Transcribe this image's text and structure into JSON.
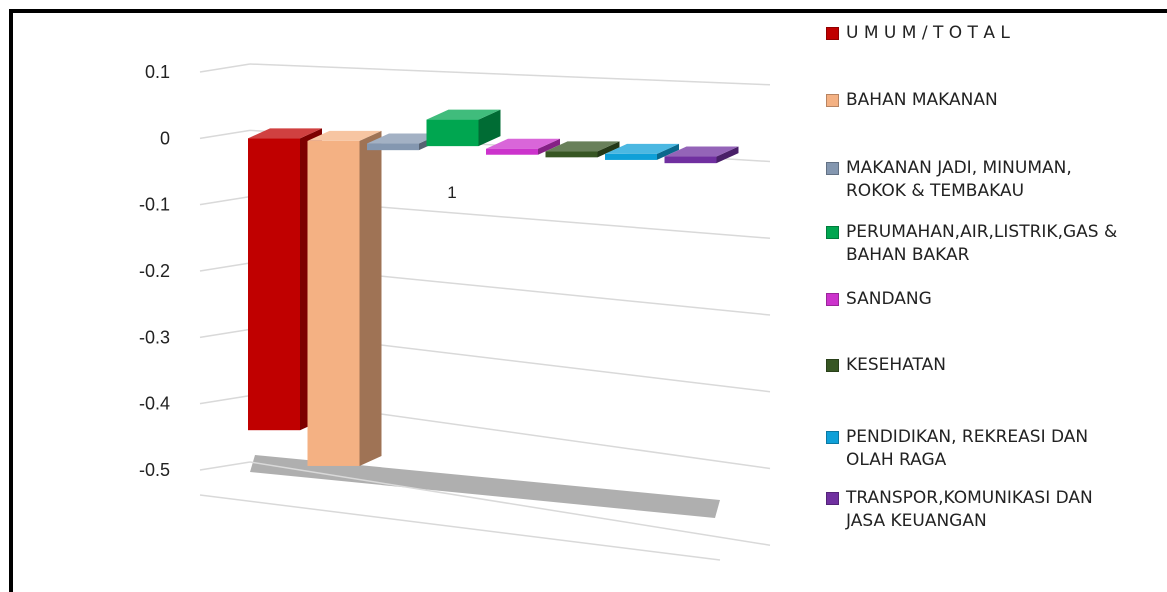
{
  "chart_data": {
    "type": "bar",
    "style": "3d-clustered-column",
    "categories": [
      "1"
    ],
    "ylim": [
      -0.5,
      0.1
    ],
    "yticks": [
      "0.1",
      "0",
      "-0.1",
      "-0.2",
      "-0.3",
      "-0.4",
      "-0.5"
    ],
    "grid": true,
    "legend_position": "right",
    "series": [
      {
        "name": "U M U M / T O T A L",
        "values": [
          -0.44
        ],
        "color": "#c00000"
      },
      {
        "name": "BAHAN MAKANAN",
        "values": [
          -0.49
        ],
        "color": "#f4b183"
      },
      {
        "name": "MAKANAN JADI, MINUMAN,\nROKOK & TEMBAKAU",
        "values": [
          -0.01
        ],
        "color": "#8497b0"
      },
      {
        "name": "PERUMAHAN,AIR,LISTRIK,GAS &\nBAHAN BAKAR",
        "values": [
          0.04
        ],
        "color": "#00a650"
      },
      {
        "name": "SANDANG",
        "values": [
          -0.005
        ],
        "color": "#cc33cc"
      },
      {
        "name": "KESEHATAN",
        "values": [
          -0.005
        ],
        "color": "#375623"
      },
      {
        "name": "PENDIDIKAN, REKREASI DAN\nOLAH RAGA",
        "values": [
          -0.005
        ],
        "color": "#0fa0d8"
      },
      {
        "name": "TRANSPOR,KOMUNIKASI DAN\nJASA KEUANGAN",
        "values": [
          -0.01
        ],
        "color": "#7030a0"
      }
    ]
  }
}
